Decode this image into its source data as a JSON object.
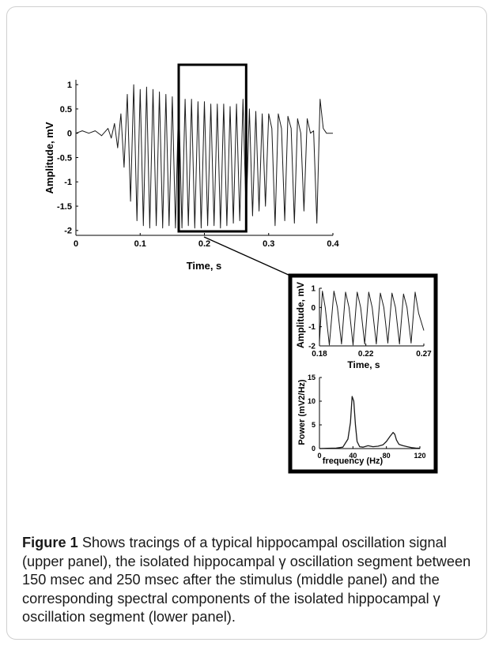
{
  "chart_data": [
    {
      "type": "line",
      "panel": "upper",
      "xlabel": "Time, s",
      "ylabel": "Amplitude, mV",
      "xlim": [
        0,
        0.4
      ],
      "ylim": [
        -2.1,
        1.1
      ],
      "xticks": [
        "0",
        "0.1",
        "0.2",
        "0.3",
        "0.4"
      ],
      "yticks": [
        "1",
        "0.5",
        "0",
        "-0.5",
        "-1",
        "-1.5",
        "-2"
      ],
      "grid": false,
      "series": [
        {
          "x": [
            0.0,
            0.01,
            0.02,
            0.03,
            0.04,
            0.05,
            0.055,
            0.06,
            0.065,
            0.07,
            0.075,
            0.08,
            0.085,
            0.09,
            0.095,
            0.1,
            0.105,
            0.11,
            0.115,
            0.12,
            0.125,
            0.13,
            0.135,
            0.14,
            0.145,
            0.15,
            0.155,
            0.16,
            0.165,
            0.17,
            0.175,
            0.18,
            0.185,
            0.19,
            0.195,
            0.2,
            0.205,
            0.21,
            0.215,
            0.22,
            0.225,
            0.23,
            0.235,
            0.24,
            0.245,
            0.25,
            0.255,
            0.26,
            0.265,
            0.27,
            0.275,
            0.28,
            0.285,
            0.29,
            0.295,
            0.3,
            0.305,
            0.31,
            0.315,
            0.32,
            0.325,
            0.33,
            0.335,
            0.34,
            0.345,
            0.35,
            0.355,
            0.36,
            0.365,
            0.37,
            0.375,
            0.38,
            0.385,
            0.39,
            0.395,
            0.4
          ],
          "y": [
            0.0,
            0.05,
            0.0,
            0.05,
            -0.05,
            0.1,
            -0.1,
            0.2,
            -0.3,
            0.4,
            -0.7,
            0.8,
            -1.4,
            1.0,
            -1.8,
            0.9,
            -1.9,
            0.95,
            -1.95,
            0.9,
            -1.9,
            0.85,
            -1.95,
            0.8,
            -1.9,
            0.75,
            -1.95,
            0.75,
            -1.95,
            0.7,
            -1.9,
            0.7,
            -1.95,
            0.65,
            -1.95,
            0.65,
            -1.9,
            0.6,
            -1.9,
            0.6,
            -1.95,
            0.6,
            -1.9,
            0.55,
            -1.85,
            0.6,
            -1.8,
            0.7,
            -1.7,
            0.5,
            -1.7,
            0.45,
            -1.6,
            0.4,
            -1.5,
            0.4,
            0.1,
            -1.9,
            0.4,
            0.1,
            -1.8,
            0.35,
            0.1,
            -1.85,
            0.3,
            0.0,
            -1.6,
            0.3,
            0.0,
            0.05,
            -1.85,
            0.7,
            0.1,
            0.0,
            0.0,
            0.0
          ]
        }
      ],
      "highlight": {
        "x_range": [
          0.16,
          0.265
        ]
      }
    },
    {
      "type": "line",
      "panel": "middle",
      "xlabel": "Time, s",
      "ylabel": "Amplitude, mV",
      "xlim": [
        0.18,
        0.27
      ],
      "ylim": [
        -2,
        1
      ],
      "xticks": [
        "0.18",
        "0.22",
        "0.27"
      ],
      "yticks": [
        "1",
        "0",
        "-1",
        "-2"
      ],
      "series": [
        {
          "x": [
            0.18,
            0.1825,
            0.185,
            0.1885,
            0.1925,
            0.1955,
            0.199,
            0.2025,
            0.2055,
            0.209,
            0.2125,
            0.2155,
            0.219,
            0.2225,
            0.2255,
            0.229,
            0.2325,
            0.2355,
            0.239,
            0.2425,
            0.2455,
            0.249,
            0.2525,
            0.2555,
            0.259,
            0.2625,
            0.2655,
            0.27
          ],
          "y": [
            -1.8,
            0.85,
            0.0,
            -1.95,
            0.85,
            0.0,
            -1.9,
            0.8,
            0.0,
            -1.95,
            0.8,
            0.0,
            -1.9,
            0.8,
            0.0,
            -1.9,
            0.75,
            0.0,
            -1.85,
            0.75,
            0.0,
            -1.9,
            0.7,
            0.0,
            -1.85,
            0.8,
            -0.3,
            -1.2
          ]
        }
      ]
    },
    {
      "type": "line",
      "panel": "lower",
      "xlabel": "frequency (Hz)",
      "ylabel": "Power (mV2/Hz)",
      "xlim": [
        0,
        120
      ],
      "ylim": [
        0,
        15
      ],
      "xticks": [
        "0",
        "40",
        "80",
        "120"
      ],
      "yticks": [
        "15",
        "10",
        "5",
        "0"
      ],
      "series": [
        {
          "x": [
            0,
            10,
            20,
            28,
            34,
            37,
            39,
            41,
            43,
            45,
            48,
            52,
            58,
            64,
            70,
            76,
            80,
            84,
            88,
            90,
            92,
            95,
            100,
            105,
            110,
            115,
            120
          ],
          "y": [
            0,
            0.05,
            0.1,
            0.3,
            2.0,
            5.5,
            11.0,
            10.0,
            5.0,
            1.5,
            0.4,
            0.3,
            0.6,
            0.4,
            0.5,
            0.8,
            1.5,
            2.5,
            3.4,
            3.0,
            1.8,
            0.9,
            0.6,
            0.4,
            0.2,
            0.1,
            0.05
          ]
        }
      ]
    }
  ],
  "caption": {
    "label": "Figure 1",
    "text": "Shows tracings of a typical hippocampal oscillation signal (upper panel), the isolated hippocampal γ oscillation segment between 150 msec and 250 msec after the stimulus (middle panel) and the corresponding spectral components of the isolated hippocampal γ oscillation segment (lower panel)."
  }
}
